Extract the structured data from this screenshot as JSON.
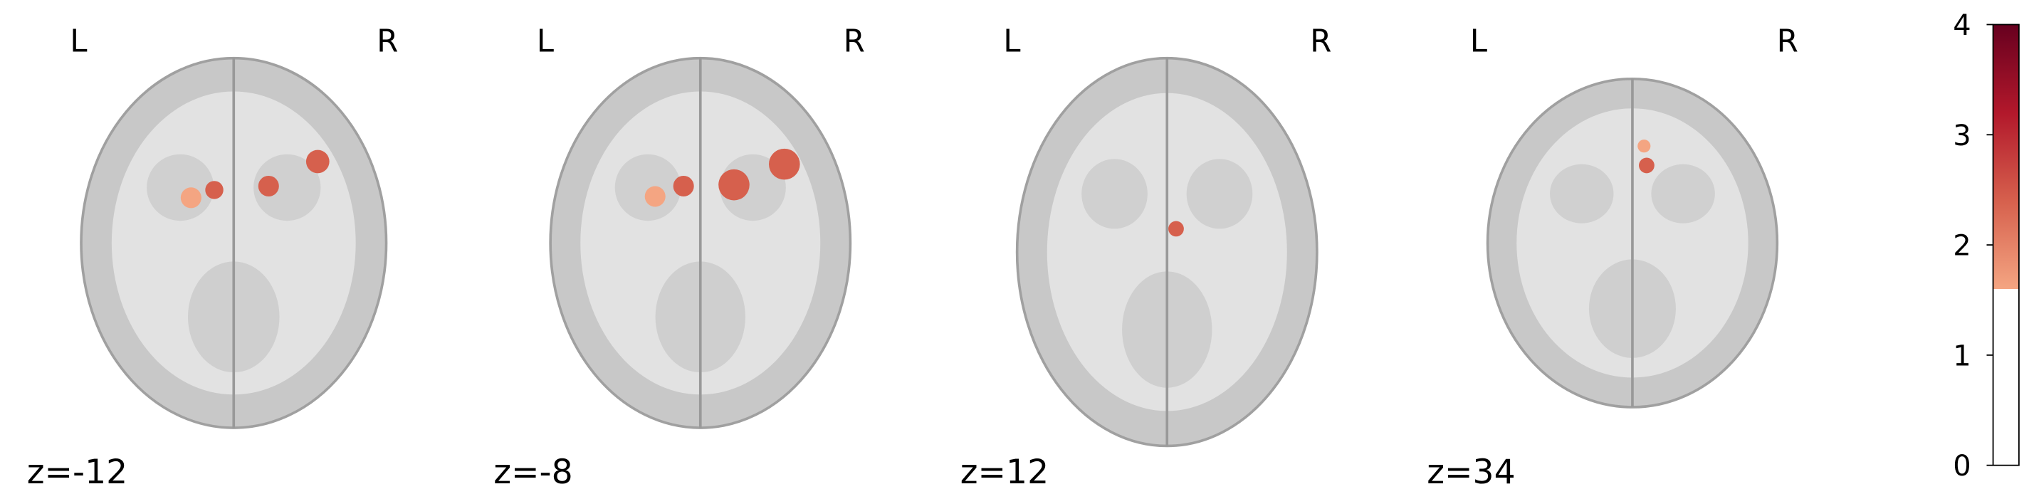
{
  "panels": [
    {
      "left": "L",
      "right": "R",
      "label": "z=-12"
    },
    {
      "left": "L",
      "right": "R",
      "label": "z=-8"
    },
    {
      "left": "L",
      "right": "R",
      "label": "z=12"
    },
    {
      "left": "L",
      "right": "R",
      "label": "z=34"
    }
  ],
  "colorbar": {
    "lim": [
      0,
      4
    ],
    "ticks": [
      0,
      1,
      2,
      3,
      4
    ],
    "threshold": 1.6,
    "colors": [
      "#f4a582",
      "#d6604d",
      "#b2182b",
      "#67001f"
    ]
  }
}
